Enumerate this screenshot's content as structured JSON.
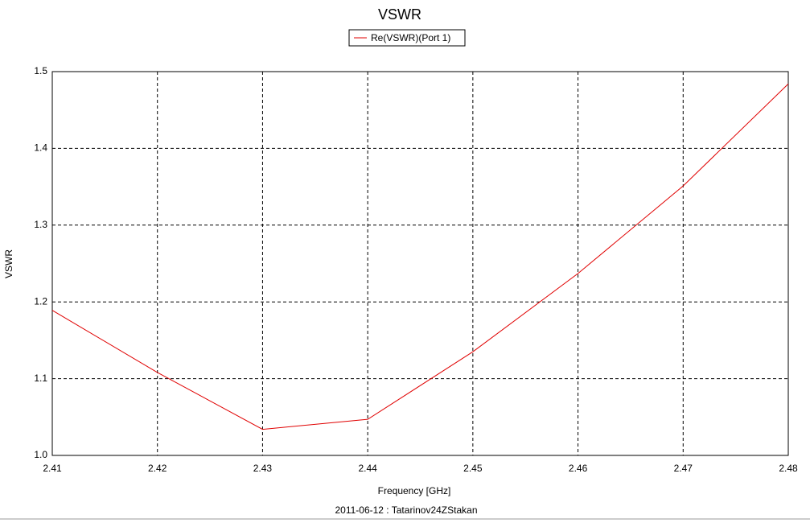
{
  "chart_data": {
    "type": "line",
    "title": "VSWR",
    "xlabel": "Frequency [GHz]",
    "ylabel": "VSWR",
    "footer": "2011-06-12 : Tatarinov24ZStakan",
    "x": [
      2.41,
      2.42,
      2.43,
      2.44,
      2.45,
      2.46,
      2.47,
      2.48
    ],
    "series": [
      {
        "name": "Re(VSWR)(Port 1)",
        "color": "#e00000",
        "values": [
          1.189,
          1.108,
          1.034,
          1.047,
          1.135,
          1.237,
          1.351,
          1.484
        ]
      }
    ],
    "xlim": [
      2.41,
      2.48
    ],
    "xticks": [
      2.41,
      2.42,
      2.43,
      2.44,
      2.45,
      2.46,
      2.47,
      2.48
    ],
    "ylim": [
      1.0,
      1.5
    ],
    "yticks": [
      {
        "value": 1.0,
        "label": "1.0"
      },
      1.1,
      1.2,
      1.3,
      1.4,
      {
        "value": 1.5,
        "label": "1.5"
      }
    ],
    "grid": true,
    "legend": "top"
  }
}
